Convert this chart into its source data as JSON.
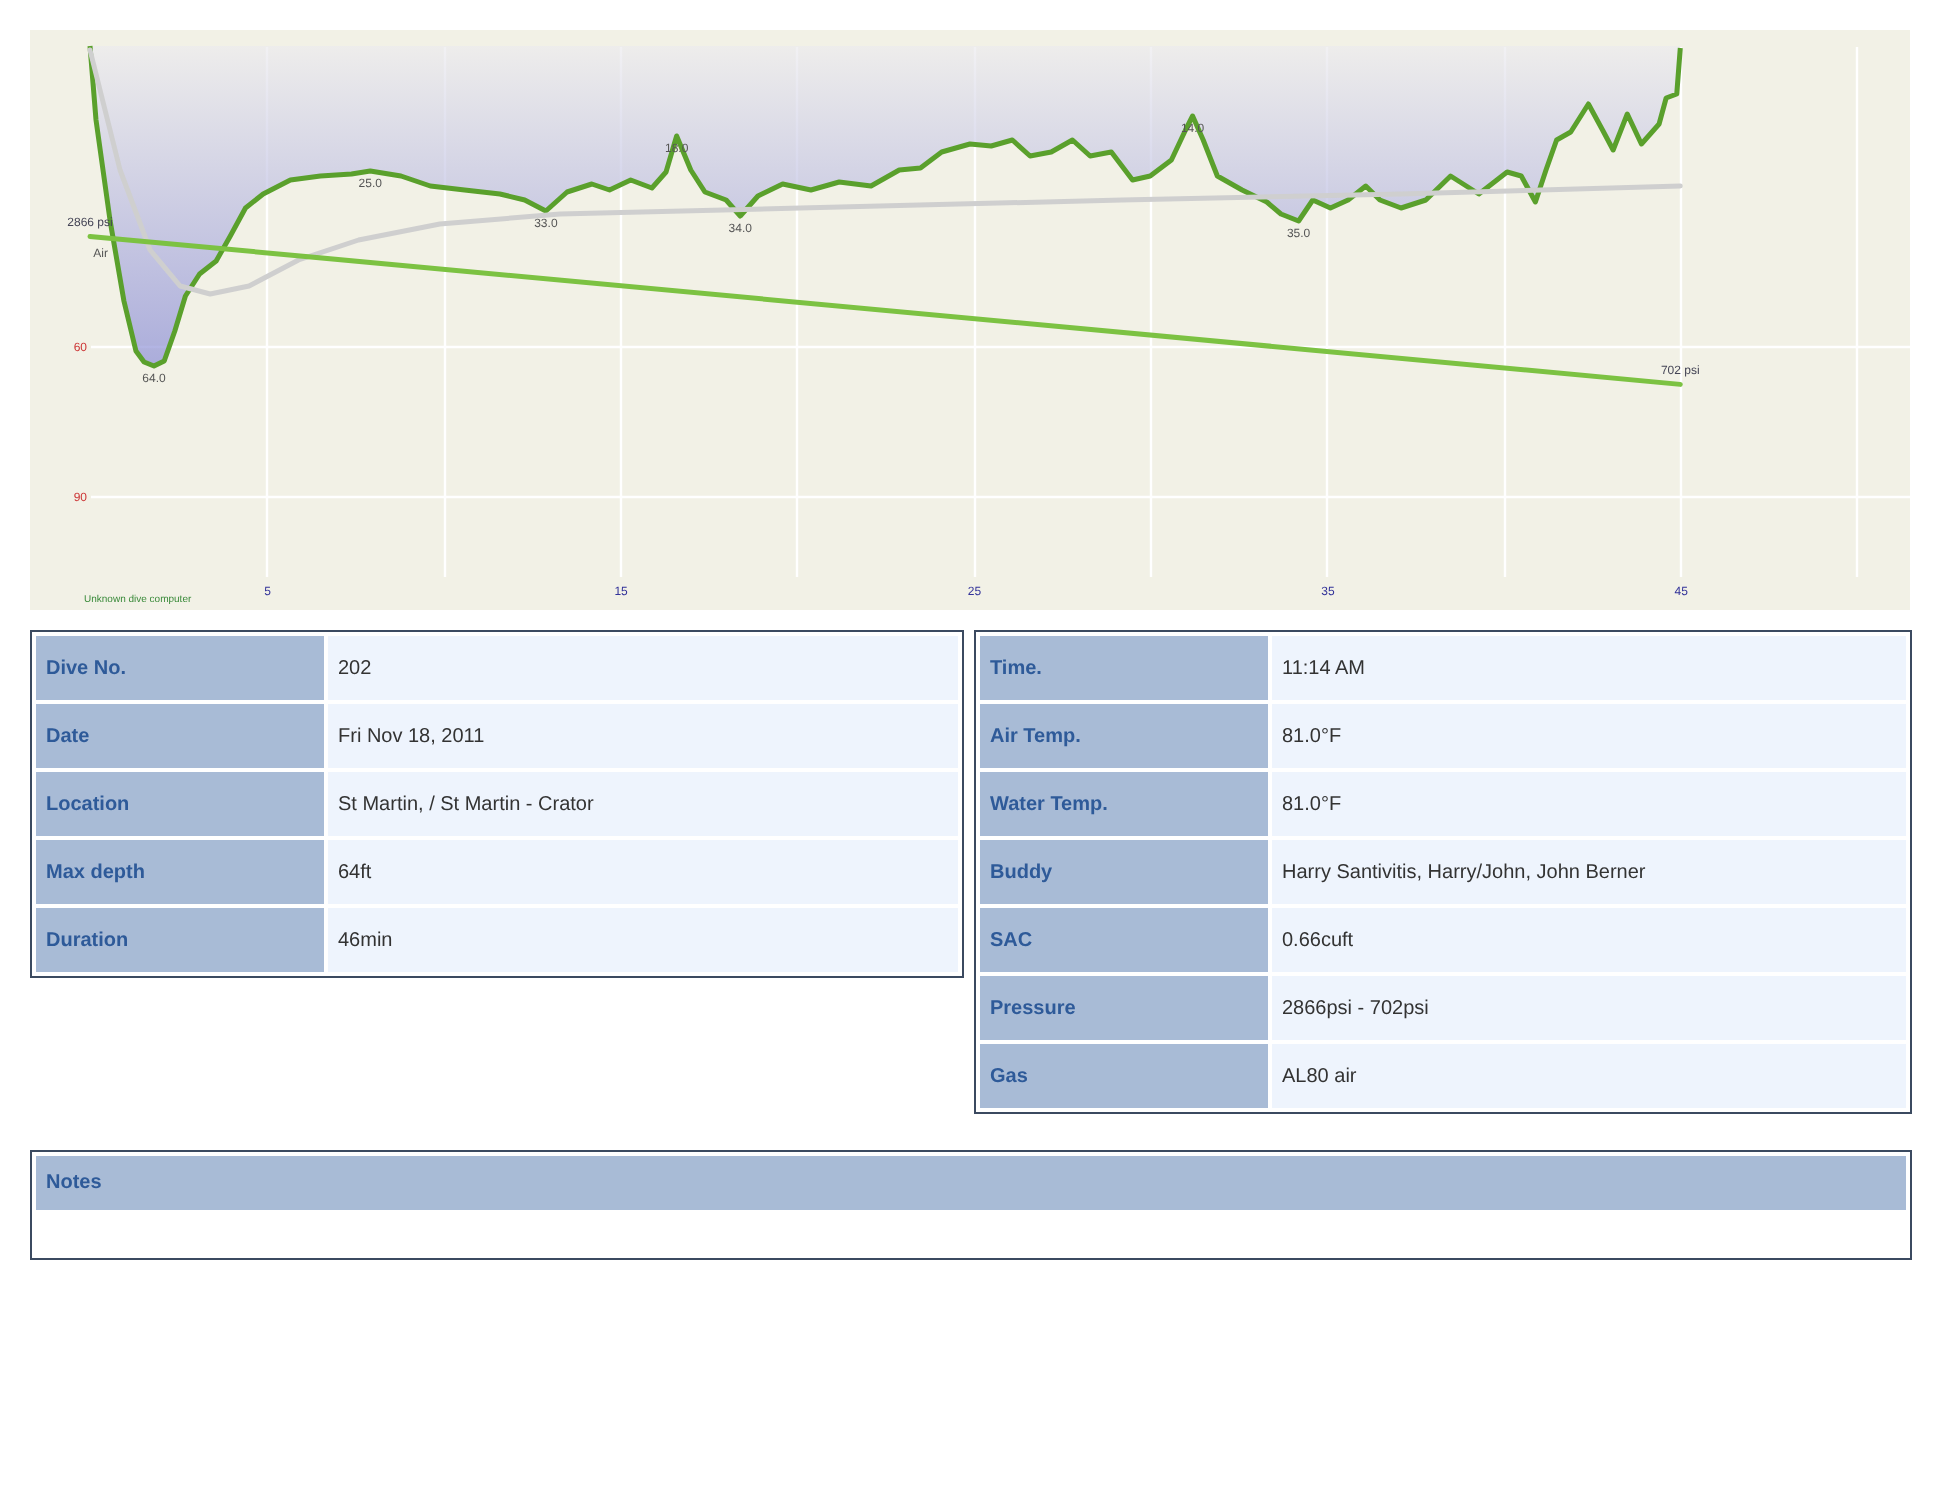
{
  "chart_data": [
    {
      "type": "area",
      "xlim": [
        0,
        51.5
      ],
      "ylim": [
        106,
        0
      ],
      "xticks": [
        5,
        {
          "value": 10,
          "label": null
        },
        15,
        {
          "value": 20,
          "label": null
        },
        25,
        {
          "value": 30,
          "label": null
        },
        35,
        {
          "value": 40,
          "label": null
        },
        45,
        {
          "value": 50,
          "label": null
        }
      ],
      "yticks": [
        60,
        90
      ],
      "y2lim": [
        -2100,
        5650
      ],
      "grid": true,
      "series": [
        {
          "color": "#5aa02c",
          "x": [
            0,
            0.17,
            0.57,
            0.96,
            1.3,
            1.53,
            1.81,
            2.1,
            2.4,
            2.7,
            3.1,
            3.57,
            3.97,
            4.4,
            4.9,
            5.67,
            6.52,
            7.4,
            7.93,
            8.8,
            9.63,
            10.6,
            11.6,
            12.3,
            12.9,
            13.5,
            14.2,
            14.7,
            15.3,
            15.9,
            16.3,
            16.6,
            17,
            17.4,
            18,
            18.4,
            18.9,
            19.6,
            20.4,
            21.2,
            22.1,
            22.9,
            23.5,
            24.1,
            24.9,
            25.5,
            26.1,
            26.6,
            27.2,
            27.8,
            28.3,
            28.9,
            29.5,
            30,
            30.6,
            31,
            31.2,
            31.5,
            31.9,
            32.6,
            33.3,
            33.7,
            34.2,
            34.6,
            35.1,
            35.6,
            36.1,
            36.5,
            37.1,
            37.8,
            38.5,
            39.3,
            40.1,
            40.5,
            40.9,
            41.2,
            41.5,
            41.9,
            42.4,
            42.8,
            43.1,
            43.5,
            43.9,
            44.4,
            44.6,
            44.9,
            45
          ],
          "values": [
            0,
            14.8,
            35,
            51,
            61,
            63.2,
            64,
            63,
            57,
            50,
            45.6,
            43,
            38,
            32.4,
            29.6,
            26.8,
            26,
            25.6,
            25,
            26,
            28,
            28.8,
            29.6,
            30.8,
            33,
            29.2,
            27.6,
            28.8,
            26.8,
            28.4,
            25.2,
            18,
            24.8,
            29.2,
            30.8,
            34,
            30,
            27.6,
            28.8,
            27.2,
            28,
            24.8,
            24.4,
            21.2,
            19.6,
            20,
            18.8,
            22,
            21.2,
            18.8,
            22,
            21.2,
            26.8,
            26,
            22.8,
            16.8,
            14,
            18.8,
            26,
            28.8,
            31.2,
            33.6,
            35,
            30.8,
            32.4,
            30.8,
            28,
            30.8,
            32.4,
            30.8,
            26,
            29.6,
            25.2,
            26,
            31.2,
            24.8,
            18.8,
            17.2,
            11.6,
            16.8,
            20.8,
            13.6,
            19.6,
            15.6,
            10.4,
            9.6,
            0.4
          ]
        },
        {
          "type": "line",
          "color": "#cfcfcf",
          "x": [
            0,
            0.85,
            1.7,
            2.55,
            3.4,
            4.5,
            5.9,
            7.6,
            9.9,
            13.3,
            20.1,
            29.2,
            37.1,
            45
          ],
          "values": [
            0.8,
            24.8,
            40.8,
            48,
            49.6,
            48,
            42.8,
            38.8,
            35.6,
            33.6,
            32.4,
            30.8,
            29.6,
            28
          ]
        },
        {
          "type": "line",
          "color": "#7cc242",
          "axis": "y2",
          "x": [
            0,
            45
          ],
          "values": [
            2866,
            702
          ],
          "value_labels": [
            "2866 psi",
            "702 psi"
          ]
        }
      ],
      "annotations": [
        {
          "text": "64.0",
          "x": 1.81,
          "y": 64
        },
        {
          "text": "25.0",
          "x": 7.93,
          "y": 25
        },
        {
          "text": "33.0",
          "x": 12.9,
          "y": 33
        },
        {
          "text": "18.0",
          "x": 16.6,
          "y": 18
        },
        {
          "text": "34.0",
          "x": 18.4,
          "y": 34
        },
        {
          "text": "14.0",
          "x": 31.2,
          "y": 14
        },
        {
          "text": "35.0",
          "x": 34.2,
          "y": 35
        },
        {
          "text": "Air",
          "x": 0.3,
          "y": 39
        },
        "Unknown dive computer"
      ]
    },
    {
      "type": "other",
      "annotations": [
        "Dive No.",
        "202",
        "Date",
        "Fri Nov 18, 2011",
        "Location",
        "St Martin, / St Martin - Crator",
        "Max depth",
        "64ft",
        "Duration",
        "46min"
      ]
    },
    {
      "type": "other",
      "annotations": [
        "Time.",
        "11:14 AM",
        "Air Temp.",
        "81.0°F",
        "Water Temp.",
        "81.0°F",
        "Buddy",
        "Harry Santivitis, Harry/John, John Berner",
        "SAC",
        "0.66cuft",
        "Pressure",
        "2866psi - 702psi",
        "Gas",
        "AL80 air"
      ]
    },
    {
      "type": "other",
      "annotations": [
        "Notes"
      ]
    }
  ]
}
